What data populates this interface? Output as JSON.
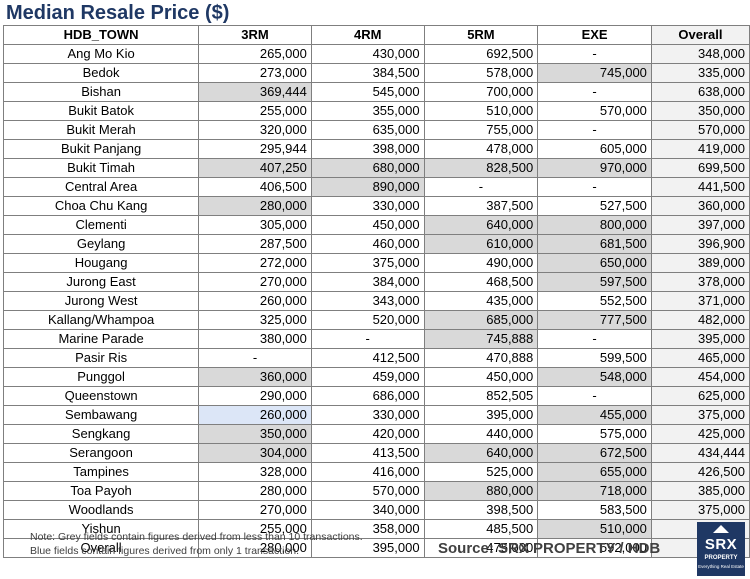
{
  "title": "Median Resale Price ($)",
  "columns": [
    "HDB_TOWN",
    "3RM",
    "4RM",
    "5RM",
    "EXE",
    "Overall"
  ],
  "rows": [
    {
      "town": "Ang Mo Kio",
      "v": [
        "265,000",
        "430,000",
        "692,500",
        "-",
        "348,000"
      ],
      "s": [
        "",
        "",
        "",
        "",
        ""
      ]
    },
    {
      "town": "Bedok",
      "v": [
        "273,000",
        "384,500",
        "578,000",
        "745,000",
        "335,000"
      ],
      "s": [
        "",
        "",
        "",
        "grey",
        ""
      ]
    },
    {
      "town": "Bishan",
      "v": [
        "369,444",
        "545,000",
        "700,000",
        "-",
        "638,000"
      ],
      "s": [
        "grey",
        "",
        "",
        "",
        ""
      ]
    },
    {
      "town": "Bukit Batok",
      "v": [
        "255,000",
        "355,000",
        "510,000",
        "570,000",
        "350,000"
      ],
      "s": [
        "",
        "",
        "",
        "",
        ""
      ]
    },
    {
      "town": "Bukit Merah",
      "v": [
        "320,000",
        "635,000",
        "755,000",
        "-",
        "570,000"
      ],
      "s": [
        "",
        "",
        "",
        "",
        ""
      ]
    },
    {
      "town": "Bukit Panjang",
      "v": [
        "295,944",
        "398,000",
        "478,000",
        "605,000",
        "419,000"
      ],
      "s": [
        "",
        "",
        "",
        "",
        ""
      ]
    },
    {
      "town": "Bukit Timah",
      "v": [
        "407,250",
        "680,000",
        "828,500",
        "970,000",
        "699,500"
      ],
      "s": [
        "grey",
        "grey",
        "grey",
        "grey",
        ""
      ]
    },
    {
      "town": "Central Area",
      "v": [
        "406,500",
        "890,000",
        "-",
        "-",
        "441,500"
      ],
      "s": [
        "",
        "grey",
        "",
        "",
        ""
      ]
    },
    {
      "town": "Choa Chu Kang",
      "v": [
        "280,000",
        "330,000",
        "387,500",
        "527,500",
        "360,000"
      ],
      "s": [
        "grey",
        "",
        "",
        "",
        ""
      ]
    },
    {
      "town": "Clementi",
      "v": [
        "305,000",
        "450,000",
        "640,000",
        "800,000",
        "397,000"
      ],
      "s": [
        "",
        "",
        "grey",
        "grey",
        ""
      ]
    },
    {
      "town": "Geylang",
      "v": [
        "287,500",
        "460,000",
        "610,000",
        "681,500",
        "396,900"
      ],
      "s": [
        "",
        "",
        "grey",
        "grey",
        ""
      ]
    },
    {
      "town": "Hougang",
      "v": [
        "272,000",
        "375,000",
        "490,000",
        "650,000",
        "389,000"
      ],
      "s": [
        "",
        "",
        "",
        "grey",
        ""
      ]
    },
    {
      "town": "Jurong East",
      "v": [
        "270,000",
        "384,000",
        "468,500",
        "597,500",
        "378,000"
      ],
      "s": [
        "",
        "",
        "",
        "grey",
        ""
      ]
    },
    {
      "town": "Jurong West",
      "v": [
        "260,000",
        "343,000",
        "435,000",
        "552,500",
        "371,000"
      ],
      "s": [
        "",
        "",
        "",
        "",
        ""
      ]
    },
    {
      "town": "Kallang/Whampoa",
      "v": [
        "325,000",
        "520,000",
        "685,000",
        "777,500",
        "482,000"
      ],
      "s": [
        "",
        "",
        "grey",
        "grey",
        ""
      ]
    },
    {
      "town": "Marine Parade",
      "v": [
        "380,000",
        "-",
        "745,888",
        "-",
        "395,000"
      ],
      "s": [
        "",
        "",
        "grey",
        "",
        ""
      ]
    },
    {
      "town": "Pasir Ris",
      "v": [
        "-",
        "412,500",
        "470,888",
        "599,500",
        "465,000"
      ],
      "s": [
        "",
        "",
        "",
        "",
        ""
      ]
    },
    {
      "town": "Punggol",
      "v": [
        "360,000",
        "459,000",
        "450,000",
        "548,000",
        "454,000"
      ],
      "s": [
        "grey",
        "",
        "",
        "grey",
        ""
      ]
    },
    {
      "town": "Queenstown",
      "v": [
        "290,000",
        "686,000",
        "852,505",
        "-",
        "625,000"
      ],
      "s": [
        "",
        "",
        "",
        "",
        ""
      ]
    },
    {
      "town": "Sembawang",
      "v": [
        "260,000",
        "330,000",
        "395,000",
        "455,000",
        "375,000"
      ],
      "s": [
        "blue",
        "",
        "",
        "grey",
        ""
      ]
    },
    {
      "town": "Sengkang",
      "v": [
        "350,000",
        "420,000",
        "440,000",
        "575,000",
        "425,000"
      ],
      "s": [
        "grey",
        "",
        "",
        "",
        ""
      ]
    },
    {
      "town": "Serangoon",
      "v": [
        "304,000",
        "413,500",
        "640,000",
        "672,500",
        "434,444"
      ],
      "s": [
        "grey",
        "",
        "grey",
        "grey",
        ""
      ]
    },
    {
      "town": "Tampines",
      "v": [
        "328,000",
        "416,000",
        "525,000",
        "655,000",
        "426,500"
      ],
      "s": [
        "",
        "",
        "",
        "grey",
        ""
      ]
    },
    {
      "town": "Toa Payoh",
      "v": [
        "280,000",
        "570,000",
        "880,000",
        "718,000",
        "385,000"
      ],
      "s": [
        "",
        "",
        "grey",
        "grey",
        ""
      ]
    },
    {
      "town": "Woodlands",
      "v": [
        "270,000",
        "340,000",
        "398,500",
        "583,500",
        "375,000"
      ],
      "s": [
        "",
        "",
        "",
        "",
        ""
      ]
    },
    {
      "town": "Yishun",
      "v": [
        "255,000",
        "358,000",
        "485,500",
        "510,000",
        "340,000"
      ],
      "s": [
        "",
        "",
        "",
        "grey",
        ""
      ]
    },
    {
      "town": "Overall",
      "v": [
        "280,000",
        "395,000",
        "475,000",
        "592,000",
        "400,000"
      ],
      "s": [
        "",
        "",
        "",
        "",
        ""
      ]
    }
  ],
  "note_line1": "Note: Grey fields contain figures derived from less than 10 transactions.",
  "note_line2": "Blue fields contain figures derived from only 1 transaction.",
  "source": "Source:  SRX PROPERTY / HDB",
  "logo": {
    "big": "SRX",
    "small": "PROPERTY",
    "tiny": "Everything Real Estate"
  },
  "colors": {
    "title": "#1f3864",
    "grey_cell": "#d9d9d9",
    "blue_cell": "#dce6f7",
    "logo_bg": "#1f3864"
  }
}
